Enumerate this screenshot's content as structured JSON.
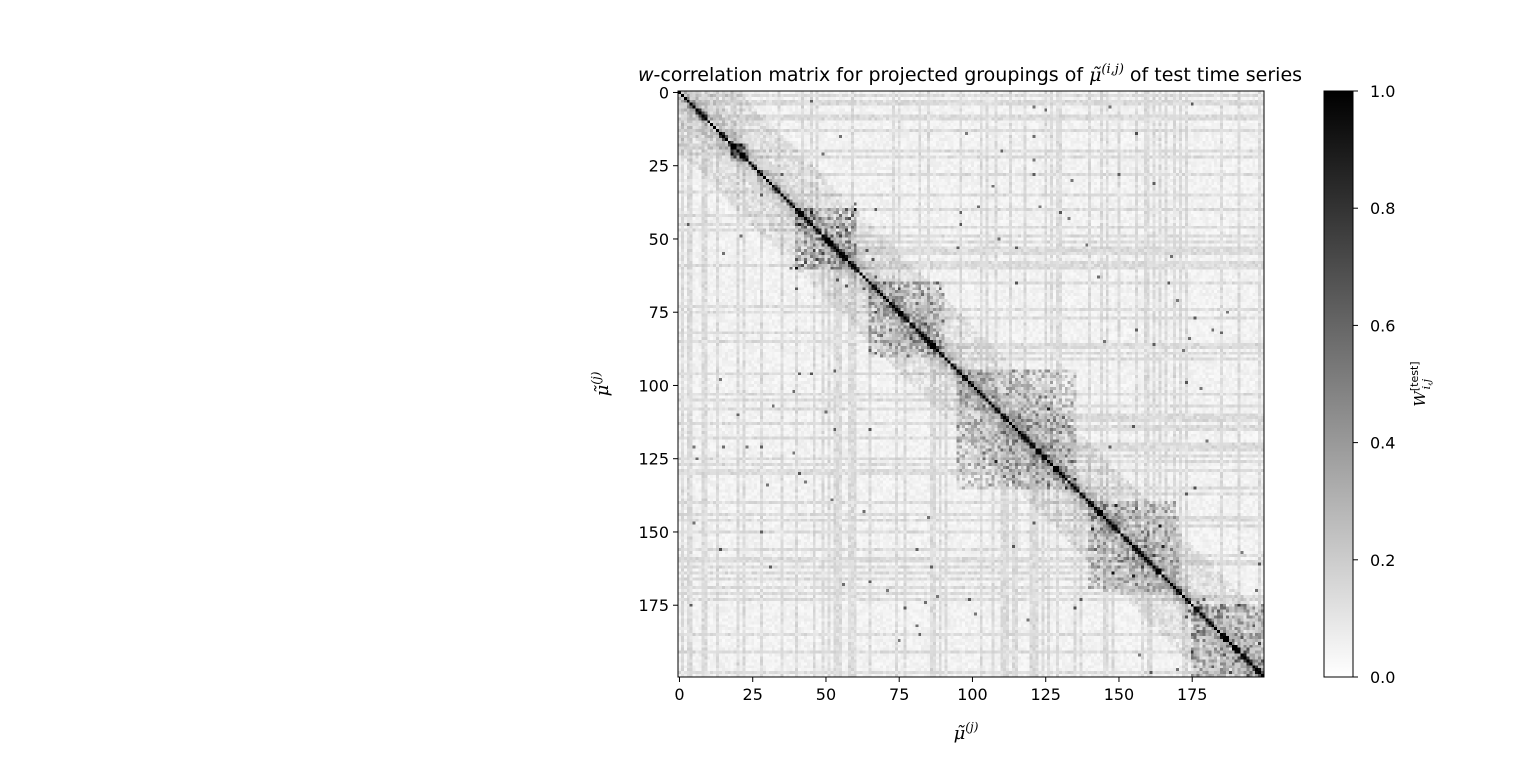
{
  "chart_data": {
    "type": "heatmap",
    "title": {
      "prefix_italic": "w",
      "main": "-correlation matrix for projected groupings of ",
      "symbol": "μ̃",
      "superscript": "(i,j)",
      "suffix": " of test time series"
    },
    "xlabel": {
      "symbol": "μ̃",
      "superscript": "(j)"
    },
    "ylabel": {
      "symbol": "μ̃",
      "superscript": "(j)"
    },
    "colorbar_label": {
      "symbol": "W",
      "superscript": "[test]",
      "subscript": "i,j"
    },
    "matrix_size": 200,
    "x_ticks": [
      "0",
      "25",
      "50",
      "75",
      "100",
      "125",
      "150",
      "175"
    ],
    "y_ticks": [
      "0",
      "25",
      "50",
      "75",
      "100",
      "125",
      "150",
      "175"
    ],
    "x_tick_values": [
      0,
      25,
      50,
      75,
      100,
      125,
      150,
      175
    ],
    "y_tick_values": [
      0,
      25,
      50,
      75,
      100,
      125,
      150,
      175
    ],
    "colorbar_ticks": [
      "0.0",
      "0.2",
      "0.4",
      "0.6",
      "0.8",
      "1.0"
    ],
    "colorbar_tick_values": [
      0.0,
      0.2,
      0.4,
      0.6,
      0.8,
      1.0
    ],
    "value_range": [
      0.0,
      1.0
    ],
    "colormap": "gray_r",
    "diagonal_value": 1.0,
    "dense_clusters": [
      {
        "from": 18,
        "to": 23,
        "level": 0.55
      },
      {
        "from": 40,
        "to": 60,
        "level": 0.45
      },
      {
        "from": 65,
        "to": 90,
        "level": 0.35
      },
      {
        "from": 95,
        "to": 135,
        "level": 0.3
      },
      {
        "from": 140,
        "to": 170,
        "level": 0.3
      },
      {
        "from": 175,
        "to": 199,
        "level": 0.35
      }
    ],
    "grid": false
  }
}
